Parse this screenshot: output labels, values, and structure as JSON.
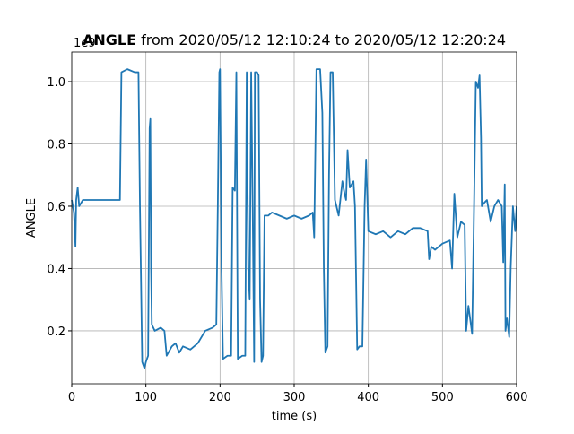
{
  "chart_data": {
    "type": "line",
    "title_parts": [
      "ANGLE",
      "from 2020/05/12 12:10:24 to 2020/05/12 12:20:24"
    ],
    "xlabel": "time (s)",
    "ylabel": "ANGLE",
    "y_offset_label": "1e9",
    "xlim": [
      0,
      600
    ],
    "xticks": [
      0,
      100,
      200,
      300,
      400,
      500,
      600
    ],
    "ylim": [
      30000000,
      1095000000
    ],
    "yticks": [
      {
        "value": 200000000,
        "label": "0.2"
      },
      {
        "value": 400000000,
        "label": "0.4"
      },
      {
        "value": 600000000,
        "label": "0.6"
      },
      {
        "value": 800000000,
        "label": "0.8"
      },
      {
        "value": 1000000000,
        "label": "1.0"
      }
    ],
    "grid": true,
    "series": [
      {
        "color": "#1f77b4",
        "x": [
          0,
          3,
          5,
          6,
          8,
          10,
          15,
          30,
          50,
          65,
          67,
          75,
          85,
          90,
          92,
          95,
          98,
          100,
          103,
          105,
          106,
          107,
          108,
          112,
          120,
          125,
          128,
          135,
          140,
          145,
          150,
          160,
          170,
          180,
          190,
          195,
          197,
          199,
          200,
          202,
          204,
          210,
          215,
          217,
          220,
          222,
          224,
          230,
          234,
          236,
          238,
          240,
          242,
          244,
          246,
          247,
          250,
          252,
          254,
          256,
          258,
          260,
          265,
          270,
          280,
          290,
          300,
          310,
          320,
          325,
          327,
          330,
          335,
          338,
          340,
          342,
          345,
          347,
          349,
          352,
          355,
          360,
          365,
          368,
          370,
          372,
          375,
          380,
          382,
          385,
          388,
          392,
          395,
          397,
          399,
          400,
          410,
          420,
          430,
          440,
          450,
          460,
          470,
          480,
          482,
          485,
          490,
          500,
          510,
          513,
          516,
          520,
          525,
          530,
          532,
          535,
          540,
          542,
          545,
          548,
          550,
          552,
          553,
          556,
          560,
          565,
          570,
          575,
          580,
          582,
          584,
          585,
          587,
          590,
          592,
          595,
          598,
          600
        ],
        "values": [
          620000000,
          580000000,
          470000000,
          620000000,
          660000000,
          600000000,
          620000000,
          620000000,
          620000000,
          620000000,
          1030000000,
          1040000000,
          1030000000,
          1030000000,
          600000000,
          100000000,
          80000000,
          100000000,
          120000000,
          850000000,
          880000000,
          400000000,
          220000000,
          200000000,
          210000000,
          200000000,
          120000000,
          150000000,
          160000000,
          130000000,
          150000000,
          140000000,
          160000000,
          200000000,
          210000000,
          220000000,
          600000000,
          1030000000,
          1040000000,
          400000000,
          110000000,
          120000000,
          120000000,
          660000000,
          650000000,
          1030000000,
          110000000,
          120000000,
          120000000,
          1030000000,
          400000000,
          300000000,
          1030000000,
          600000000,
          100000000,
          1030000000,
          1030000000,
          1020000000,
          300000000,
          100000000,
          120000000,
          570000000,
          570000000,
          580000000,
          570000000,
          560000000,
          570000000,
          560000000,
          570000000,
          580000000,
          500000000,
          1040000000,
          1040000000,
          900000000,
          400000000,
          130000000,
          150000000,
          700000000,
          1030000000,
          1030000000,
          620000000,
          570000000,
          680000000,
          640000000,
          620000000,
          780000000,
          660000000,
          680000000,
          600000000,
          140000000,
          150000000,
          150000000,
          600000000,
          750000000,
          600000000,
          520000000,
          510000000,
          520000000,
          500000000,
          520000000,
          510000000,
          530000000,
          530000000,
          520000000,
          430000000,
          470000000,
          460000000,
          480000000,
          490000000,
          400000000,
          640000000,
          500000000,
          550000000,
          540000000,
          200000000,
          280000000,
          190000000,
          500000000,
          1000000000,
          980000000,
          1020000000,
          820000000,
          600000000,
          610000000,
          620000000,
          550000000,
          600000000,
          620000000,
          600000000,
          420000000,
          670000000,
          200000000,
          240000000,
          180000000,
          400000000,
          600000000,
          520000000,
          600000000
        ]
      }
    ]
  }
}
